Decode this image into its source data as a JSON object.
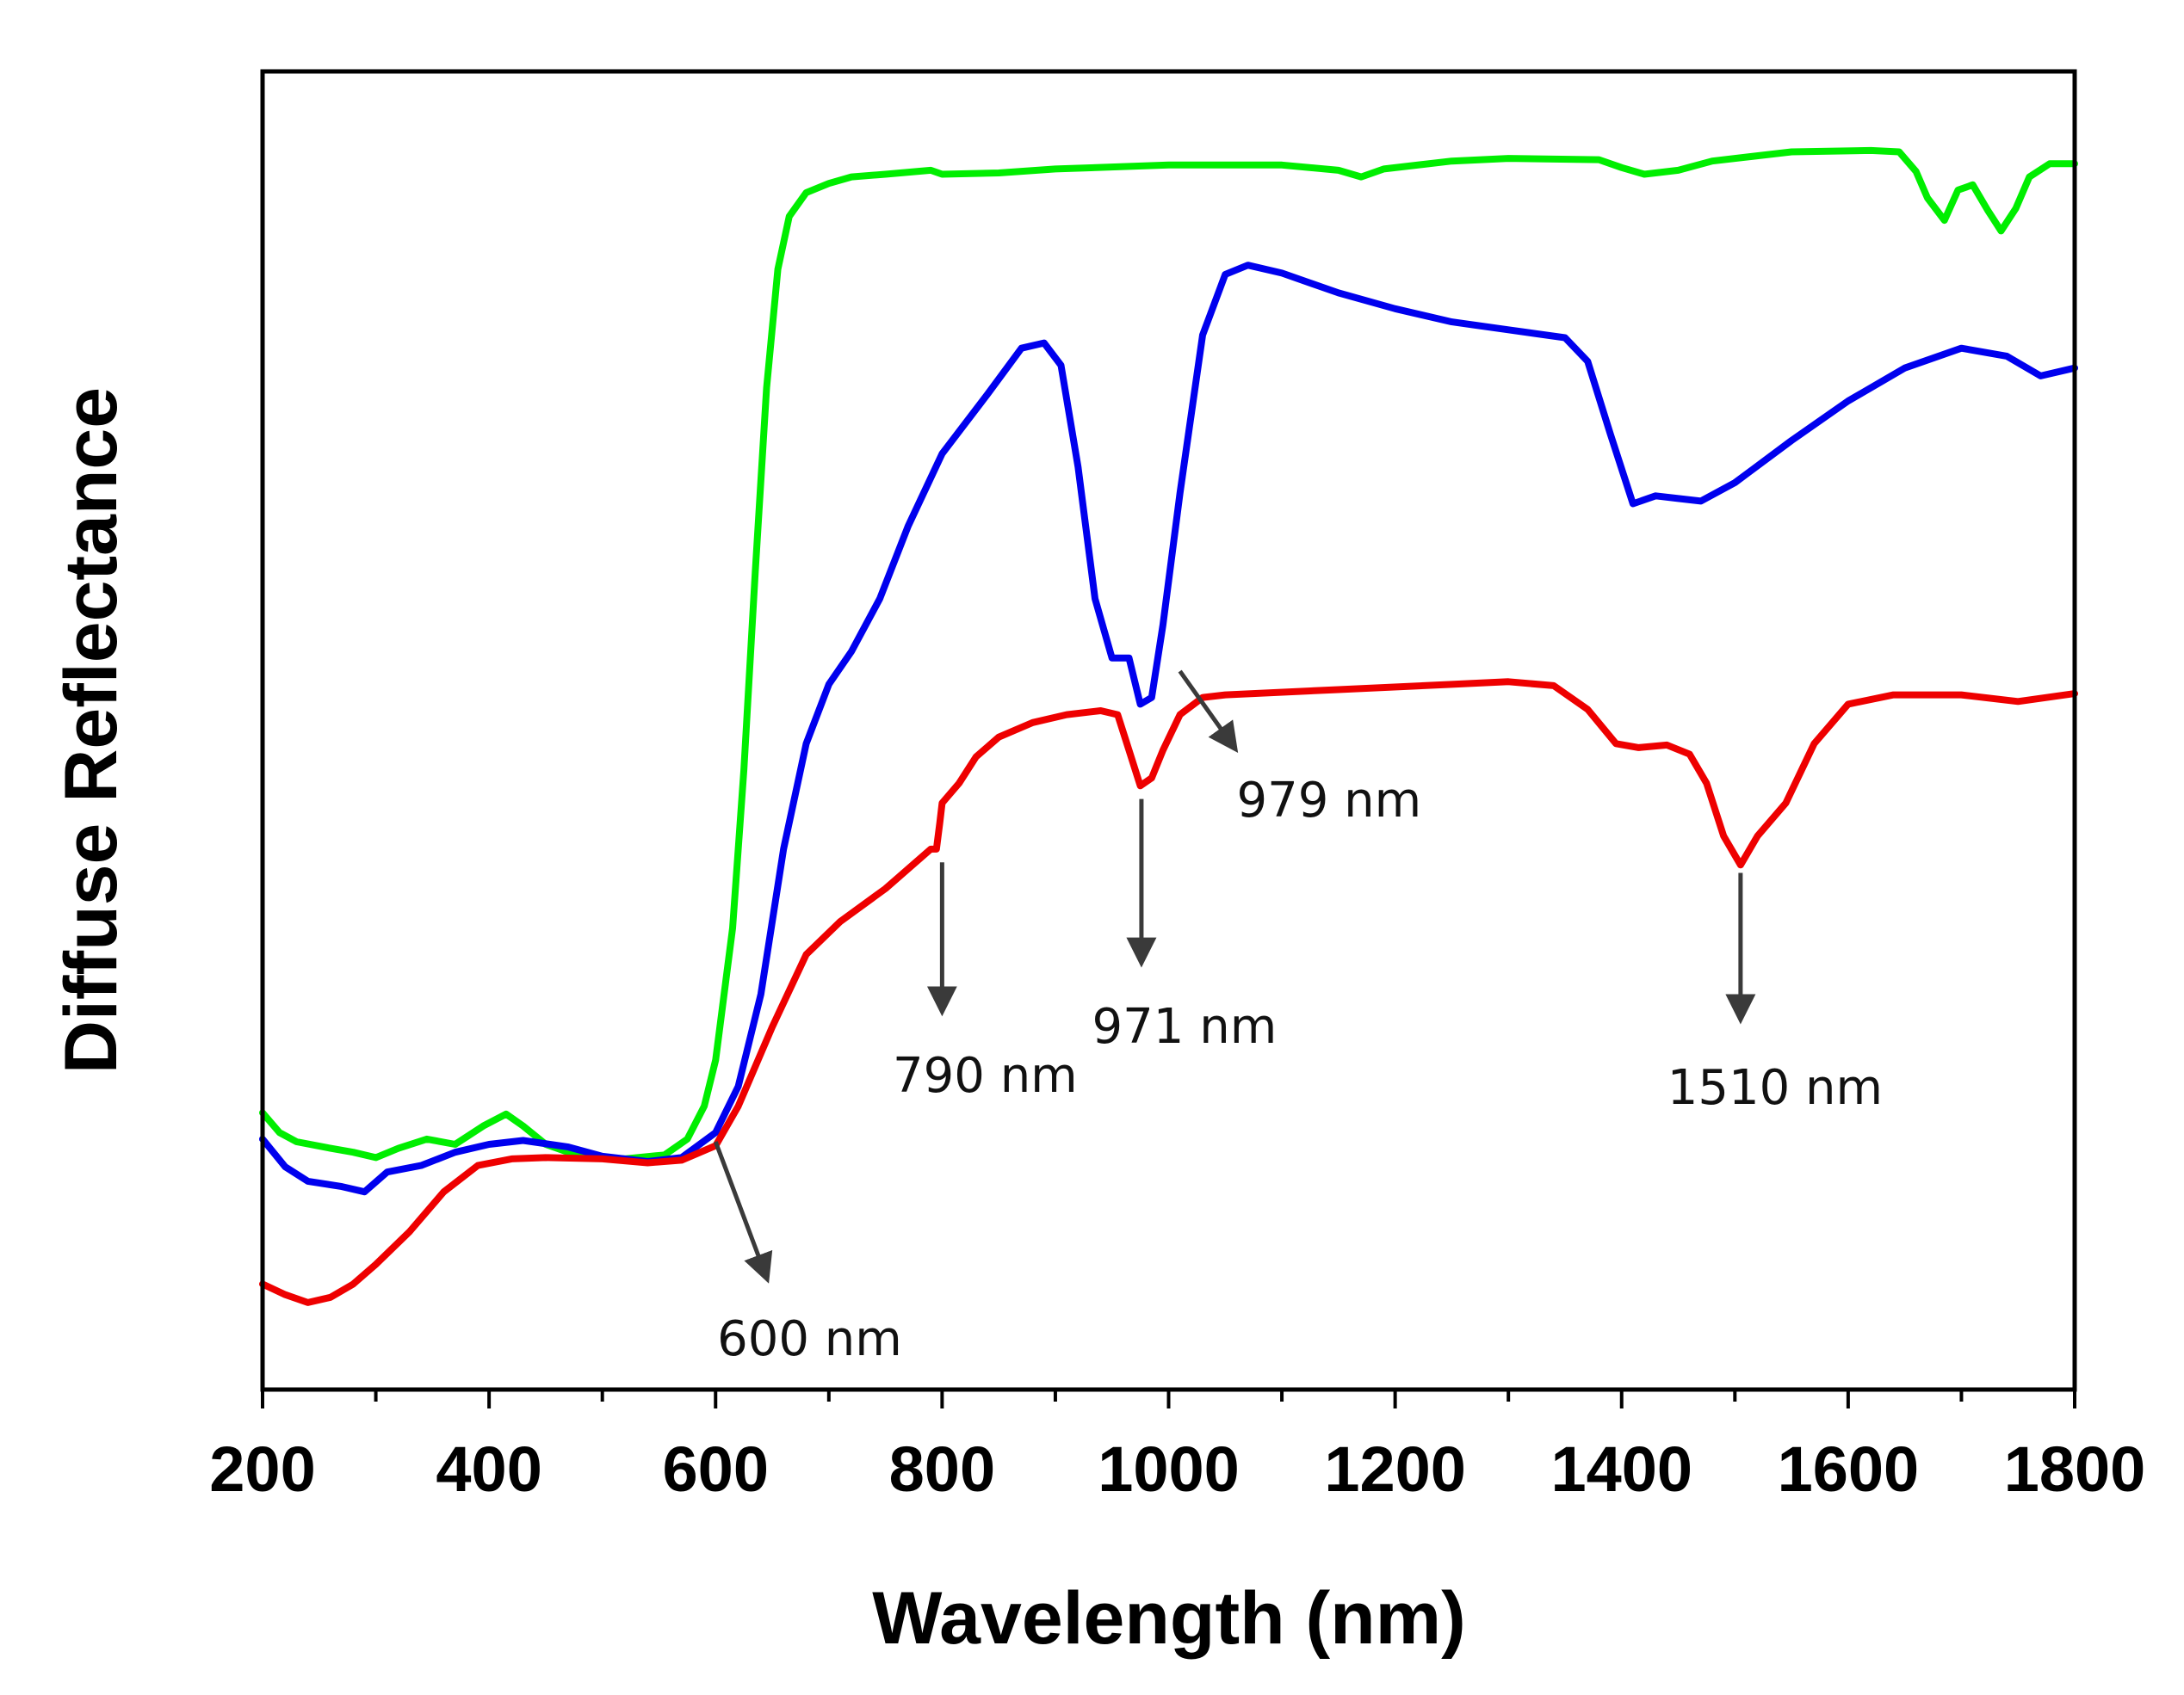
{
  "chart_data": {
    "type": "line",
    "title": "",
    "xlabel": "Wavelength (nm)",
    "ylabel": "Diffuse Reflectance",
    "xlim": [
      200,
      1800
    ],
    "ylim": [
      0,
      100
    ],
    "x_ticks": [
      200,
      400,
      600,
      800,
      1000,
      1200,
      1400,
      1600,
      1800
    ],
    "y_ticks_shown": false,
    "grid": false,
    "legend": "none",
    "series": [
      {
        "color": "#00ee00",
        "points": [
          [
            200,
            21
          ],
          [
            215,
            19.5
          ],
          [
            230,
            18.8
          ],
          [
            260,
            18.3
          ],
          [
            280,
            18
          ],
          [
            300,
            17.6
          ],
          [
            320,
            18.3
          ],
          [
            345,
            19
          ],
          [
            370,
            18.6
          ],
          [
            395,
            20
          ],
          [
            415,
            20.9
          ],
          [
            430,
            20
          ],
          [
            450,
            18.6
          ],
          [
            480,
            17.7
          ],
          [
            520,
            17.5
          ],
          [
            555,
            17.8
          ],
          [
            575,
            19
          ],
          [
            590,
            21.5
          ],
          [
            600,
            25
          ],
          [
            615,
            35
          ],
          [
            625,
            47
          ],
          [
            635,
            62
          ],
          [
            645,
            76
          ],
          [
            655,
            85
          ],
          [
            665,
            89
          ],
          [
            680,
            90.8
          ],
          [
            700,
            91.5
          ],
          [
            720,
            92
          ],
          [
            750,
            92.2
          ],
          [
            790,
            92.5
          ],
          [
            800,
            92.2
          ],
          [
            850,
            92.3
          ],
          [
            900,
            92.6
          ],
          [
            1000,
            92.9
          ],
          [
            1100,
            92.9
          ],
          [
            1150,
            92.5
          ],
          [
            1170,
            92
          ],
          [
            1190,
            92.6
          ],
          [
            1250,
            93.2
          ],
          [
            1300,
            93.4
          ],
          [
            1380,
            93.3
          ],
          [
            1400,
            92.7
          ],
          [
            1420,
            92.2
          ],
          [
            1450,
            92.5
          ],
          [
            1480,
            93.2
          ],
          [
            1550,
            93.9
          ],
          [
            1620,
            94
          ],
          [
            1645,
            93.9
          ],
          [
            1660,
            92.4
          ],
          [
            1670,
            90.4
          ],
          [
            1685,
            88.7
          ],
          [
            1697,
            91
          ],
          [
            1710,
            91.4
          ],
          [
            1723,
            89.5
          ],
          [
            1735,
            87.9
          ],
          [
            1748,
            89.6
          ],
          [
            1760,
            92
          ],
          [
            1778,
            93
          ],
          [
            1800,
            93
          ]
        ]
      },
      {
        "color": "#0000ee",
        "points": [
          [
            200,
            19
          ],
          [
            220,
            16.9
          ],
          [
            240,
            15.8
          ],
          [
            270,
            15.4
          ],
          [
            290,
            15
          ],
          [
            310,
            16.5
          ],
          [
            340,
            17
          ],
          [
            370,
            18
          ],
          [
            400,
            18.6
          ],
          [
            430,
            18.9
          ],
          [
            470,
            18.4
          ],
          [
            500,
            17.7
          ],
          [
            540,
            17.3
          ],
          [
            570,
            17.6
          ],
          [
            600,
            19.5
          ],
          [
            620,
            23
          ],
          [
            640,
            30
          ],
          [
            660,
            41
          ],
          [
            680,
            49
          ],
          [
            700,
            53.5
          ],
          [
            720,
            56
          ],
          [
            745,
            60
          ],
          [
            770,
            65.5
          ],
          [
            800,
            71
          ],
          [
            840,
            75.5
          ],
          [
            870,
            79
          ],
          [
            890,
            79.4
          ],
          [
            905,
            77.7
          ],
          [
            920,
            70
          ],
          [
            935,
            60
          ],
          [
            950,
            55.5
          ],
          [
            965,
            55.5
          ],
          [
            975,
            52
          ],
          [
            985,
            52.5
          ],
          [
            995,
            58
          ],
          [
            1010,
            68
          ],
          [
            1030,
            80
          ],
          [
            1050,
            84.6
          ],
          [
            1070,
            85.3
          ],
          [
            1100,
            84.7
          ],
          [
            1150,
            83.2
          ],
          [
            1200,
            82
          ],
          [
            1250,
            81
          ],
          [
            1300,
            80.4
          ],
          [
            1350,
            79.8
          ],
          [
            1370,
            78
          ],
          [
            1390,
            72.5
          ],
          [
            1410,
            67.2
          ],
          [
            1430,
            67.8
          ],
          [
            1450,
            67.6
          ],
          [
            1470,
            67.4
          ],
          [
            1500,
            68.8
          ],
          [
            1550,
            72
          ],
          [
            1600,
            75
          ],
          [
            1650,
            77.5
          ],
          [
            1700,
            79
          ],
          [
            1740,
            78.4
          ],
          [
            1770,
            76.9
          ],
          [
            1800,
            77.5
          ]
        ]
      },
      {
        "color": "#ee0000",
        "points": [
          [
            200,
            8
          ],
          [
            220,
            7.2
          ],
          [
            240,
            6.6
          ],
          [
            260,
            7
          ],
          [
            280,
            8
          ],
          [
            300,
            9.5
          ],
          [
            330,
            12
          ],
          [
            360,
            15
          ],
          [
            390,
            17
          ],
          [
            420,
            17.5
          ],
          [
            450,
            17.6
          ],
          [
            500,
            17.5
          ],
          [
            540,
            17.2
          ],
          [
            570,
            17.4
          ],
          [
            600,
            18.5
          ],
          [
            620,
            21.5
          ],
          [
            650,
            27.5
          ],
          [
            680,
            33
          ],
          [
            710,
            35.5
          ],
          [
            750,
            38
          ],
          [
            790,
            41
          ],
          [
            795,
            41
          ],
          [
            798,
            43
          ],
          [
            800,
            44.5
          ],
          [
            815,
            46
          ],
          [
            830,
            48
          ],
          [
            850,
            49.5
          ],
          [
            880,
            50.6
          ],
          [
            910,
            51.2
          ],
          [
            940,
            51.5
          ],
          [
            955,
            51.2
          ],
          [
            965,
            48.5
          ],
          [
            975,
            45.8
          ],
          [
            985,
            46.4
          ],
          [
            995,
            48.5
          ],
          [
            1010,
            51.2
          ],
          [
            1030,
            52.5
          ],
          [
            1050,
            52.7
          ],
          [
            1150,
            53.1
          ],
          [
            1250,
            53.5
          ],
          [
            1300,
            53.7
          ],
          [
            1340,
            53.4
          ],
          [
            1370,
            51.6
          ],
          [
            1395,
            49
          ],
          [
            1415,
            48.7
          ],
          [
            1440,
            48.9
          ],
          [
            1460,
            48.2
          ],
          [
            1475,
            46
          ],
          [
            1490,
            42
          ],
          [
            1505,
            39.8
          ],
          [
            1520,
            42
          ],
          [
            1545,
            44.5
          ],
          [
            1570,
            49
          ],
          [
            1600,
            52
          ],
          [
            1640,
            52.7
          ],
          [
            1700,
            52.7
          ],
          [
            1750,
            52.2
          ],
          [
            1800,
            52.8
          ]
        ]
      }
    ],
    "annotations": [
      {
        "text": "600 nm",
        "from": [
          600,
          18.8
        ],
        "to": [
          645,
          8.5
        ]
      },
      {
        "text": "790 nm",
        "from": [
          800,
          40
        ],
        "to": [
          800,
          28.8
        ]
      },
      {
        "text": "971 nm",
        "from": [
          976,
          44.8
        ],
        "to": [
          976,
          32.5
        ]
      },
      {
        "text": "979 nm",
        "from": [
          1010,
          54.5
        ],
        "to": [
          1058,
          48.7
        ]
      },
      {
        "text": "1510 nm",
        "from": [
          1505,
          39.2
        ],
        "to": [
          1505,
          28.2
        ]
      }
    ]
  }
}
